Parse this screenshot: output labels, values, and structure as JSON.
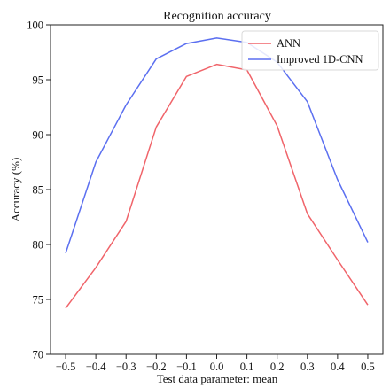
{
  "chart_data": {
    "type": "line",
    "title": "Recognition accuracy",
    "xlabel": "Test data parameter: mean",
    "ylabel": "Accuracy (%)",
    "x": [
      -0.5,
      -0.4,
      -0.3,
      -0.2,
      -0.1,
      0.0,
      0.1,
      0.2,
      0.3,
      0.4,
      0.5
    ],
    "x_tick_labels": [
      "−0.5",
      "−0.4",
      "−0.3",
      "−0.2",
      "−0.1",
      "0.0",
      "0.1",
      "0.2",
      "0.3",
      "0.4",
      "0.5"
    ],
    "xlim": [
      -0.55,
      0.55
    ],
    "ylim": [
      70,
      100
    ],
    "y_ticks": [
      70,
      75,
      80,
      85,
      90,
      95,
      100
    ],
    "y_tick_labels": [
      "70",
      "75",
      "80",
      "85",
      "90",
      "95",
      "100"
    ],
    "grid": false,
    "legend_position": "top-right",
    "series": [
      {
        "name": "ANN",
        "color": "#f0646a",
        "values": [
          74.2,
          77.9,
          82.1,
          90.7,
          95.3,
          96.4,
          95.9,
          90.8,
          82.8,
          78.6,
          74.5
        ]
      },
      {
        "name": "Improved 1D-CNN",
        "color": "#5b6ff0",
        "values": [
          79.2,
          87.5,
          92.7,
          96.9,
          98.3,
          98.8,
          98.4,
          96.6,
          93.0,
          85.9,
          80.2
        ]
      }
    ]
  }
}
